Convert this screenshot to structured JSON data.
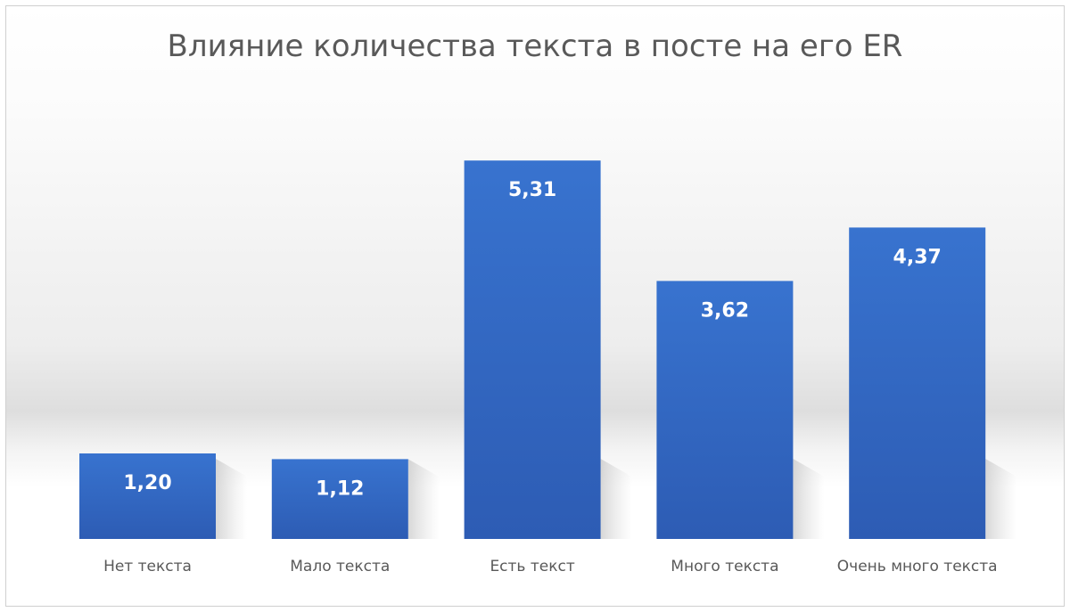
{
  "chart_data": {
    "type": "bar",
    "title": "Влияние количества текста в посте на его ER",
    "categories": [
      "Нет текста",
      "Мало текста",
      "Есть текст",
      "Много текста",
      "Очень много текста"
    ],
    "values": [
      1.2,
      1.12,
      5.31,
      3.62,
      4.37
    ],
    "data_labels": [
      "1,20",
      "1,12",
      "5,31",
      "3,62",
      "4,37"
    ],
    "xlabel": "",
    "ylabel": "",
    "ylim": [
      0,
      5.5
    ],
    "grid": false,
    "legend": "none",
    "bar_color_top": "#3873cf",
    "bar_color_bottom": "#2d5cb4"
  }
}
